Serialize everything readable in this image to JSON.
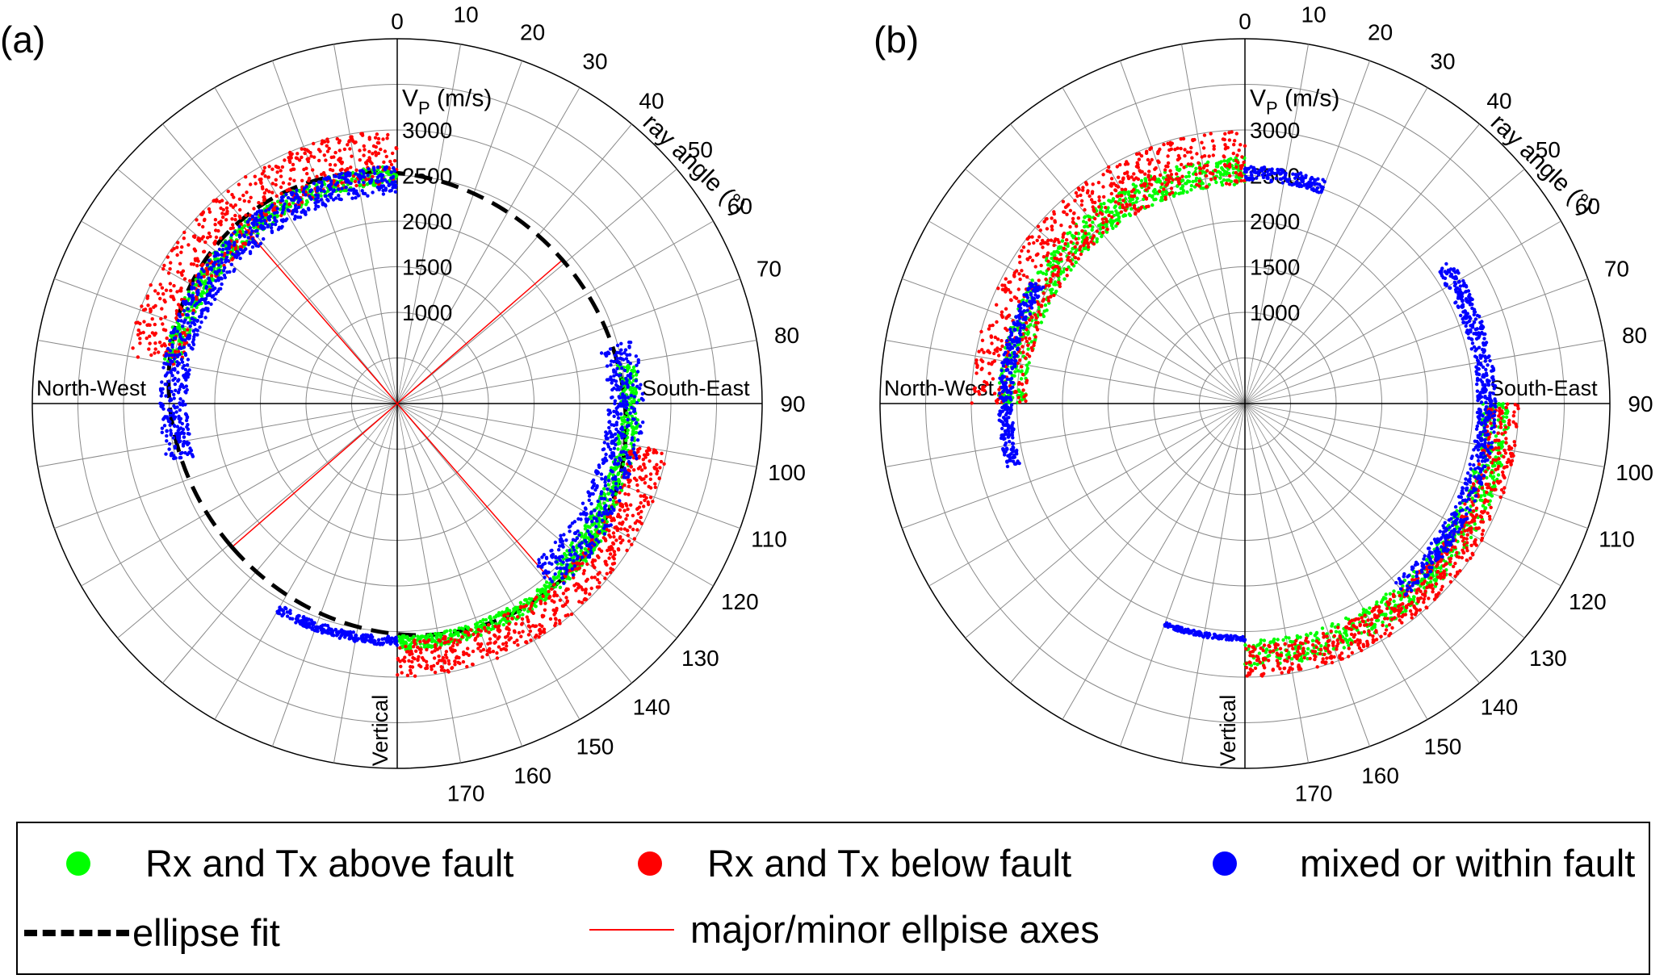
{
  "panels": [
    {
      "label": "(a)",
      "show_fit": true
    },
    {
      "label": "(b)",
      "show_fit": false
    }
  ],
  "chart_data": [
    {
      "type": "scatter",
      "subtype": "polar",
      "panel": "(a)",
      "radial_label": "V_P (m/s)",
      "radial_ticks": [
        1000,
        1500,
        2000,
        2500,
        3000
      ],
      "radial_range": [
        0,
        4000
      ],
      "angular_label": "ray angle (°)",
      "angular_ticks": [
        0,
        10,
        20,
        30,
        40,
        50,
        60,
        70,
        80,
        90,
        100,
        110,
        120,
        130,
        140,
        150,
        160,
        170
      ],
      "direction_labels": {
        "right": "South-East",
        "left": "North-West",
        "bottom": "Vertical"
      },
      "series": [
        {
          "name": "Rx and Tx above fault",
          "color": "#00ff00",
          "segments": [
            {
              "angle_range": [
                0,
                80
              ],
              "velocity_range": [
                2400,
                2600
              ],
              "side": "left"
            },
            {
              "angle_range": [
                80,
                135
              ],
              "velocity_range": [
                2450,
                2650
              ],
              "side": "right"
            },
            {
              "angle_range": [
                120,
                180
              ],
              "velocity_range": [
                2550,
                2700
              ],
              "side": "right"
            }
          ]
        },
        {
          "name": "Rx and Tx below fault",
          "color": "#ff0000",
          "segments": [
            {
              "angle_range": [
                0,
                80
              ],
              "velocity_range": [
                2400,
                3000
              ],
              "side": "left"
            },
            {
              "angle_range": [
                100,
                180
              ],
              "velocity_range": [
                2600,
                3000
              ],
              "side": "right"
            }
          ]
        },
        {
          "name": "mixed or within fault",
          "color": "#0000ff",
          "segments": [
            {
              "angle_range": [
                0,
                105
              ],
              "velocity_range": [
                2300,
                2600
              ],
              "side": "left"
            },
            {
              "angle_range": [
                75,
                140
              ],
              "velocity_range": [
                2300,
                2700
              ],
              "side": "right"
            },
            {
              "angle_range": [
                150,
                180
              ],
              "velocity_range": [
                2550,
                2650
              ],
              "side": "left"
            }
          ]
        }
      ],
      "ellipse_fit": {
        "name": "ellipse fit",
        "semi_axes": [
          2640,
          2400
        ],
        "major_axis_angle_deg": 139
      }
    },
    {
      "type": "scatter",
      "subtype": "polar",
      "panel": "(b)",
      "radial_label": "V_P (m/s)",
      "radial_ticks": [
        1000,
        1500,
        2000,
        2500,
        3000
      ],
      "radial_range": [
        0,
        4000
      ],
      "angular_label": "ray angle (°)",
      "angular_ticks": [
        0,
        10,
        20,
        30,
        40,
        50,
        60,
        70,
        80,
        90,
        100,
        110,
        120,
        130,
        140,
        150,
        160,
        170
      ],
      "direction_labels": {
        "right": "South-East",
        "left": "North-West",
        "bottom": "Vertical"
      },
      "series": [
        {
          "name": "Rx and Tx above fault",
          "color": "#00ff00",
          "segments": [
            {
              "angle_range": [
                0,
                90
              ],
              "velocity_range": [
                2400,
                2700
              ],
              "side": "left"
            },
            {
              "angle_range": [
                90,
                180
              ],
              "velocity_range": [
                2600,
                2900
              ],
              "side": "right"
            }
          ]
        },
        {
          "name": "Rx and Tx below fault",
          "color": "#ff0000",
          "segments": [
            {
              "angle_range": [
                0,
                90
              ],
              "velocity_range": [
                2400,
                3000
              ],
              "side": "left"
            },
            {
              "angle_range": [
                90,
                180
              ],
              "velocity_range": [
                2650,
                3000
              ],
              "side": "right"
            }
          ]
        },
        {
          "name": "mixed or within fault",
          "color": "#0000ff",
          "segments": [
            {
              "angle_range": [
                0,
                20
              ],
              "velocity_range": [
                2450,
                2600
              ],
              "side": "right"
            },
            {
              "angle_range": [
                60,
                105
              ],
              "velocity_range": [
                2550,
                2700
              ],
              "side": "left"
            },
            {
              "angle_range": [
                55,
                140
              ],
              "velocity_range": [
                2550,
                2750
              ],
              "side": "right"
            },
            {
              "angle_range": [
                160,
                180
              ],
              "velocity_range": [
                2550,
                2600
              ],
              "side": "left"
            }
          ]
        }
      ]
    }
  ],
  "legend": {
    "items": [
      {
        "label": "Rx and Tx above fault",
        "color": "#00ff00"
      },
      {
        "label": "Rx and Tx below fault",
        "color": "#ff0000"
      },
      {
        "label": "mixed or within fault",
        "color": "#0000ff"
      },
      {
        "label": "ellipse fit",
        "color": "#000000"
      },
      {
        "label": "major/minor ellpise axes",
        "color": "#ff0000"
      }
    ]
  }
}
